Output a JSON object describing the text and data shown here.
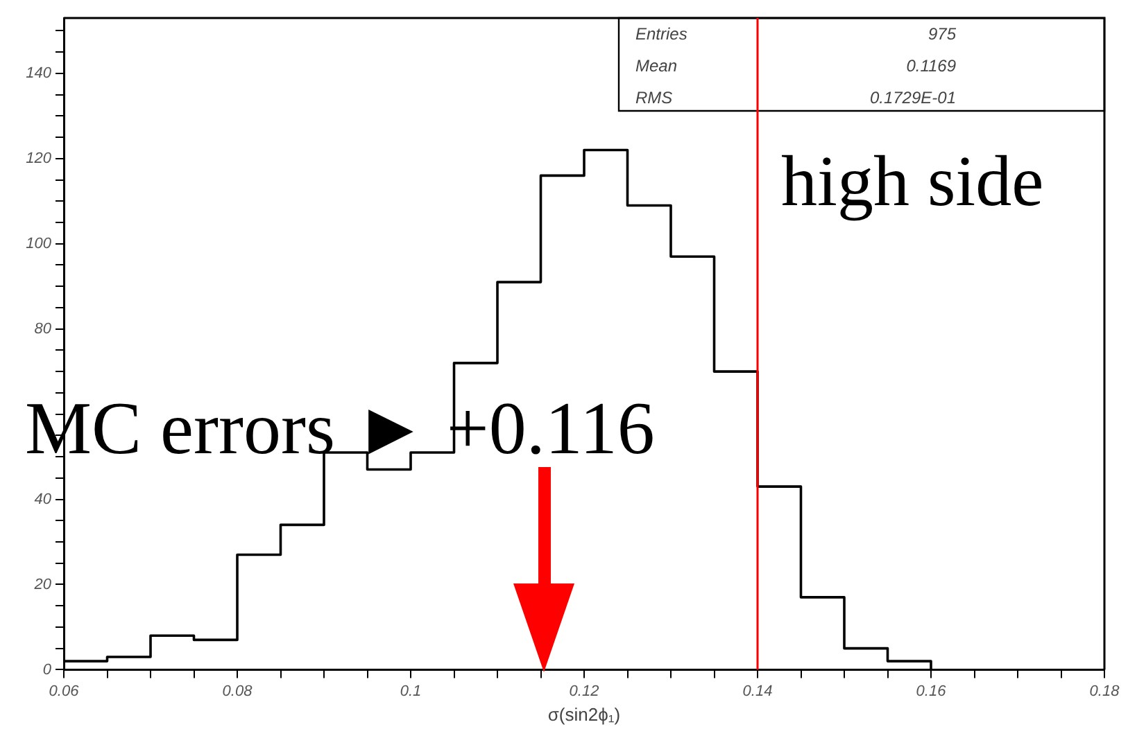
{
  "chart_data": {
    "type": "histogram",
    "xlabel": "σ(sin2ϕ₁)",
    "bins": [
      0.06,
      0.065,
      0.07,
      0.075,
      0.08,
      0.085,
      0.09,
      0.095,
      0.1,
      0.105,
      0.11,
      0.115,
      0.12,
      0.125,
      0.13,
      0.135,
      0.14,
      0.145,
      0.15,
      0.155,
      0.16
    ],
    "values": [
      2,
      3,
      8,
      7,
      27,
      34,
      51,
      47,
      51,
      72,
      91,
      116,
      122,
      109,
      97,
      70,
      43,
      17,
      5,
      2
    ],
    "color": "#000000",
    "xlim": [
      0.06,
      0.18
    ],
    "xticks": [
      0.06,
      {
        "value": 0.065,
        "label": null
      },
      {
        "value": 0.07,
        "label": null
      },
      {
        "value": 0.075,
        "label": null
      },
      0.08,
      {
        "value": 0.085,
        "label": null
      },
      {
        "value": 0.09,
        "label": null
      },
      {
        "value": 0.095,
        "label": null
      },
      0.1,
      {
        "value": 0.105,
        "label": null
      },
      {
        "value": 0.11,
        "label": null
      },
      {
        "value": 0.115,
        "label": null
      },
      0.12,
      {
        "value": 0.125,
        "label": null
      },
      {
        "value": 0.13,
        "label": null
      },
      {
        "value": 0.135,
        "label": null
      },
      0.14,
      {
        "value": 0.145,
        "label": null
      },
      {
        "value": 0.15,
        "label": null
      },
      {
        "value": 0.155,
        "label": null
      },
      0.16,
      {
        "value": 0.165,
        "label": null
      },
      {
        "value": 0.17,
        "label": null
      },
      {
        "value": 0.175,
        "label": null
      },
      0.18
    ],
    "ylim": [
      0,
      153
    ],
    "yticks": [
      0,
      {
        "value": 5,
        "label": null
      },
      {
        "value": 10,
        "label": null
      },
      {
        "value": 15,
        "label": null
      },
      20,
      {
        "value": 25,
        "label": null
      },
      {
        "value": 30,
        "label": null
      },
      {
        "value": 35,
        "label": null
      },
      40,
      {
        "value": 45,
        "label": null
      },
      {
        "value": 50,
        "label": null
      },
      {
        "value": 55,
        "label": null
      },
      {
        "value": 60,
        "label": null
      },
      {
        "value": 65,
        "label": null
      },
      {
        "value": 70,
        "label": null
      },
      {
        "value": 75,
        "label": null
      },
      80,
      {
        "value": 85,
        "label": null
      },
      {
        "value": 90,
        "label": null
      },
      {
        "value": 95,
        "label": null
      },
      100,
      {
        "value": 105,
        "label": null
      },
      {
        "value": 110,
        "label": null
      },
      {
        "value": 115,
        "label": null
      },
      120,
      {
        "value": 125,
        "label": null
      },
      {
        "value": 130,
        "label": null
      },
      {
        "value": 135,
        "label": null
      },
      140,
      {
        "value": 145,
        "label": null
      },
      {
        "value": 150,
        "label": null
      }
    ],
    "ref_lines": [
      {
        "axis": "x",
        "value": 0.14,
        "label": "high side",
        "color": "#ff0000"
      }
    ],
    "annotations": [
      "Entries",
      "975",
      "Mean",
      "0.1169",
      "RMS",
      "0.1729E-01",
      "MC errors ► +0.116"
    ],
    "grid": false,
    "legend": false
  }
}
